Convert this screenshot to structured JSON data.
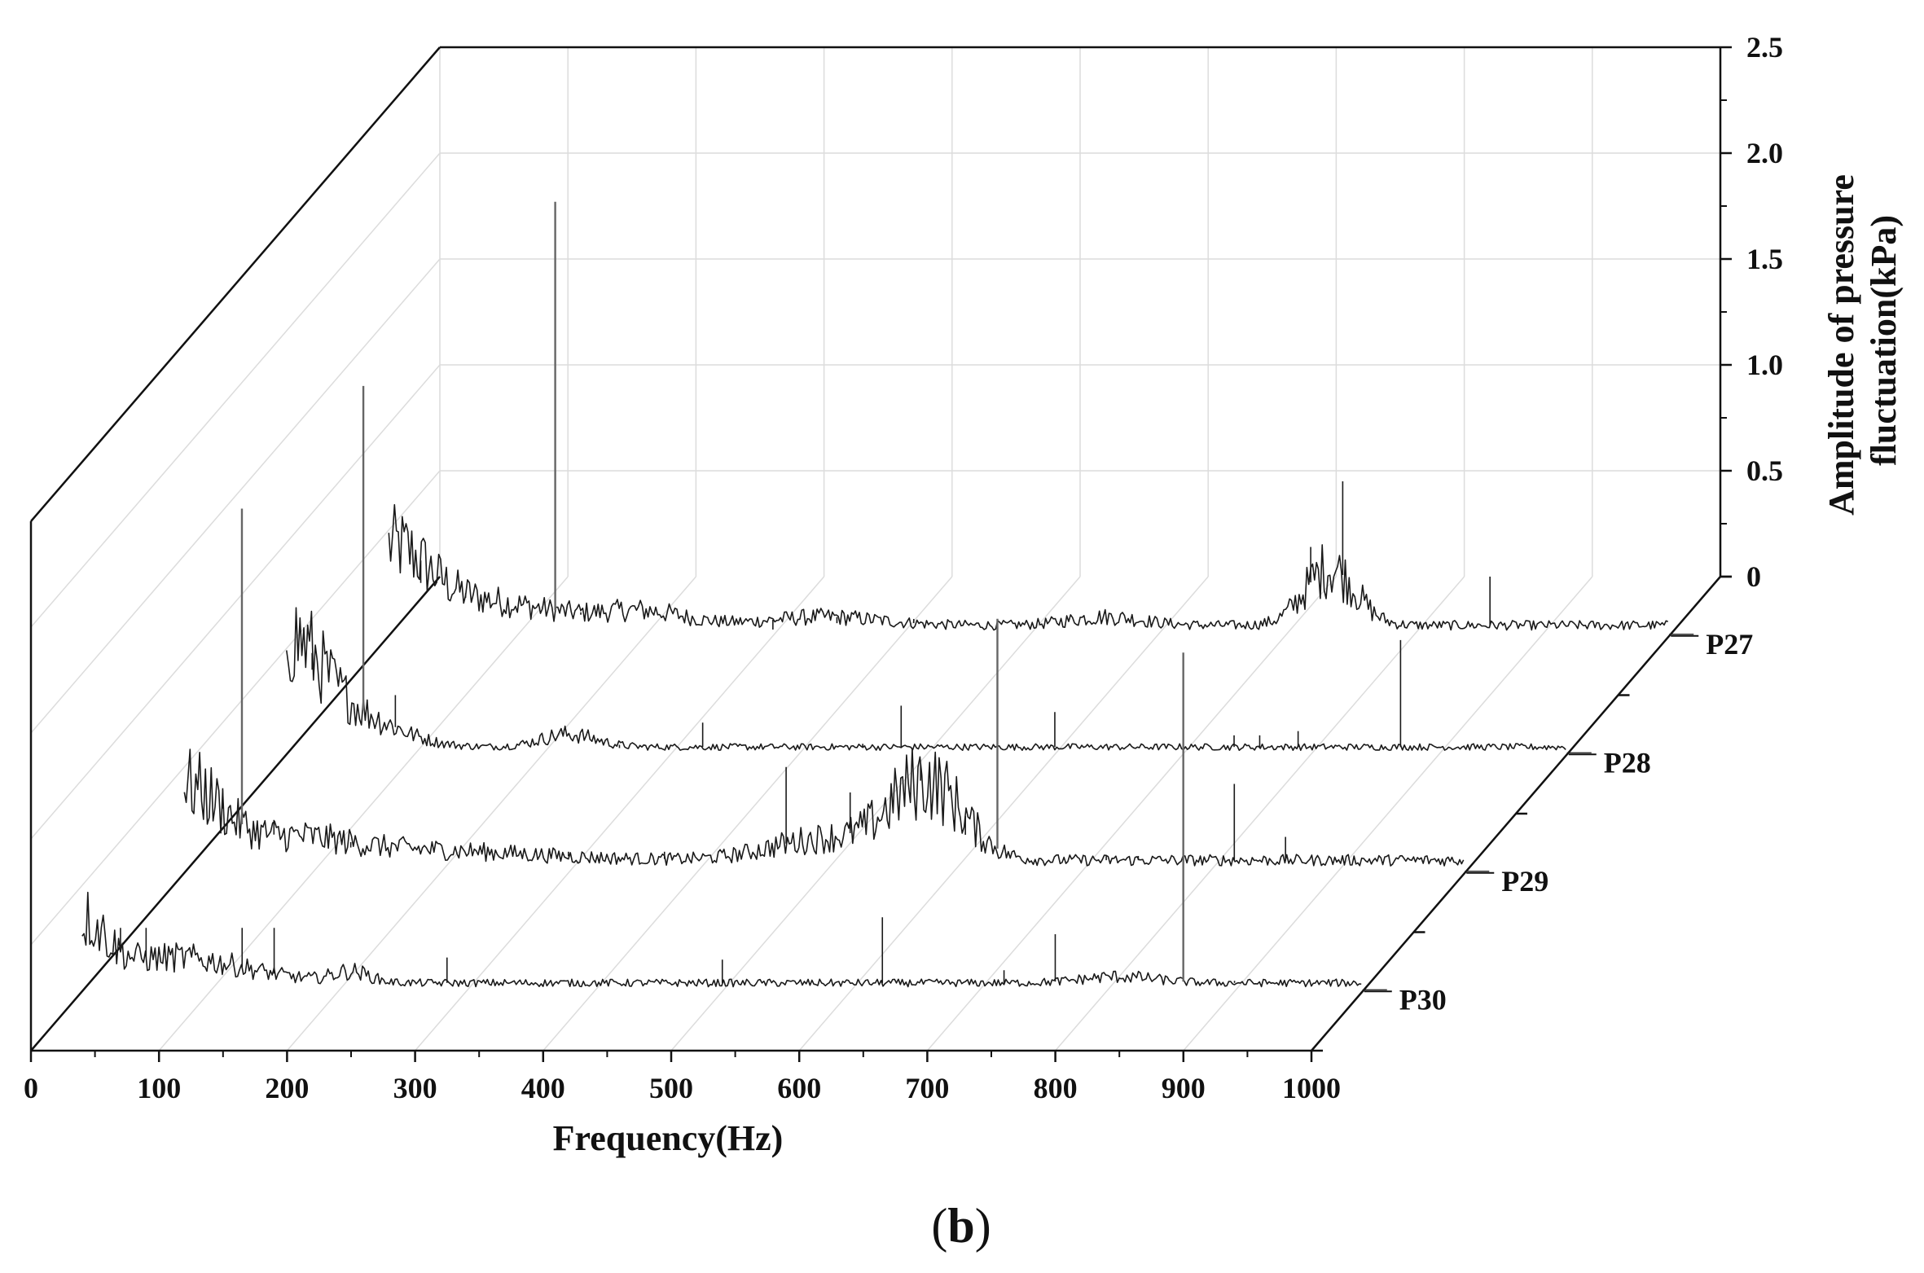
{
  "panel_label": {
    "open": "(",
    "letter": "b",
    "close": ")"
  },
  "chart_data": {
    "type": "line",
    "projection": "3d-waterfall",
    "xlabel": "Frequency(Hz)",
    "zlabel": [
      "Amplitude of pressure",
      "fluctuation(kPa)"
    ],
    "xlim": [
      0,
      1000
    ],
    "zlim": [
      0,
      2.5
    ],
    "x_ticks": [
      "0",
      "100",
      "200",
      "300",
      "400",
      "500",
      "600",
      "700",
      "800",
      "900",
      "1000"
    ],
    "z_ticks": [
      "0",
      "0.5",
      "1.0",
      "1.5",
      "2.0",
      "2.5"
    ],
    "grid": true,
    "line_color": "#1a1a1a",
    "series": [
      {
        "name": "P27",
        "base": 0.05,
        "bumps": [
          {
            "x": 0,
            "width": 40,
            "amp": 0.3
          },
          {
            "x": 60,
            "width": 90,
            "amp": 0.12
          },
          {
            "x": 200,
            "width": 45,
            "amp": 0.06
          },
          {
            "x": 340,
            "width": 60,
            "amp": 0.04
          },
          {
            "x": 560,
            "width": 40,
            "amp": 0.04
          },
          {
            "x": 735,
            "width": 28,
            "amp": 0.27
          }
        ],
        "peaks": [
          {
            "x": 25,
            "y": 0.25
          },
          {
            "x": 60,
            "y": 0.18
          },
          {
            "x": 130,
            "y": 2.05
          },
          {
            "x": 150,
            "y": 0.1
          },
          {
            "x": 300,
            "y": 0.03
          },
          {
            "x": 350,
            "y": 0.06
          },
          {
            "x": 410,
            "y": 0.08
          },
          {
            "x": 720,
            "y": 0.42
          },
          {
            "x": 745,
            "y": 0.73
          },
          {
            "x": 860,
            "y": 0.28
          },
          {
            "x": 980,
            "y": 0.05
          },
          {
            "x": 1100,
            "y": 0.16
          }
        ]
      },
      {
        "name": "P28",
        "base": 0.035,
        "bumps": [
          {
            "x": 0,
            "width": 40,
            "amp": 0.5
          },
          {
            "x": 60,
            "width": 45,
            "amp": 0.12
          },
          {
            "x": 220,
            "width": 30,
            "amp": 0.06
          }
        ],
        "peaks": [
          {
            "x": 20,
            "y": 0.4
          },
          {
            "x": 60,
            "y": 1.74
          },
          {
            "x": 85,
            "y": 0.28
          },
          {
            "x": 260,
            "y": 0.03
          },
          {
            "x": 325,
            "y": 0.15
          },
          {
            "x": 450,
            "y": 0.05
          },
          {
            "x": 480,
            "y": 0.23
          },
          {
            "x": 600,
            "y": 0.2
          },
          {
            "x": 740,
            "y": 0.09
          },
          {
            "x": 760,
            "y": 0.09
          },
          {
            "x": 790,
            "y": 0.11
          },
          {
            "x": 870,
            "y": 0.54
          }
        ]
      },
      {
        "name": "P29",
        "base": 0.06,
        "bumps": [
          {
            "x": 0,
            "width": 40,
            "amp": 0.33
          },
          {
            "x": 80,
            "width": 60,
            "amp": 0.08
          },
          {
            "x": 170,
            "width": 130,
            "amp": 0.05
          },
          {
            "x": 500,
            "width": 60,
            "amp": 0.1
          },
          {
            "x": 580,
            "width": 40,
            "amp": 0.36
          }
        ],
        "peaks": [
          {
            "x": 30,
            "y": 0.4
          },
          {
            "x": 45,
            "y": 1.72
          },
          {
            "x": 70,
            "y": 0.25
          },
          {
            "x": 130,
            "y": 0.12
          },
          {
            "x": 300,
            "y": 0.1
          },
          {
            "x": 375,
            "y": 0.1
          },
          {
            "x": 470,
            "y": 0.5
          },
          {
            "x": 520,
            "y": 0.38
          },
          {
            "x": 575,
            "y": 0.52
          },
          {
            "x": 610,
            "y": 0.18
          },
          {
            "x": 635,
            "y": 1.2
          },
          {
            "x": 720,
            "y": 0.08
          },
          {
            "x": 745,
            "y": 0.08
          },
          {
            "x": 820,
            "y": 0.42
          },
          {
            "x": 860,
            "y": 0.17
          },
          {
            "x": 900,
            "y": 0.05
          }
        ]
      },
      {
        "name": "P30",
        "base": 0.04,
        "bumps": [
          {
            "x": 0,
            "width": 25,
            "amp": 0.25
          },
          {
            "x": 70,
            "width": 80,
            "amp": 0.12
          },
          {
            "x": 210,
            "width": 20,
            "amp": 0.05
          },
          {
            "x": 810,
            "width": 40,
            "amp": 0.03
          }
        ],
        "peaks": [
          {
            "x": 30,
            "y": 0.3
          },
          {
            "x": 50,
            "y": 0.3
          },
          {
            "x": 125,
            "y": 0.3
          },
          {
            "x": 150,
            "y": 0.3
          },
          {
            "x": 285,
            "y": 0.16
          },
          {
            "x": 500,
            "y": 0.15
          },
          {
            "x": 625,
            "y": 0.35
          },
          {
            "x": 720,
            "y": 0.1
          },
          {
            "x": 760,
            "y": 0.27
          },
          {
            "x": 860,
            "y": 1.6
          },
          {
            "x": 900,
            "y": 0.05
          }
        ]
      }
    ]
  }
}
